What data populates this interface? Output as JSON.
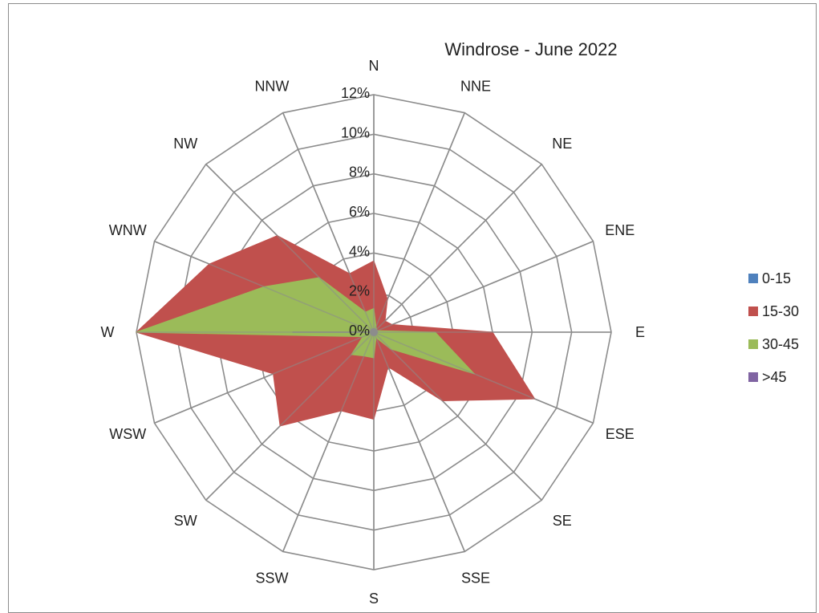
{
  "chart_data": {
    "type": "radar",
    "title": "Windrose - June 2022",
    "directions": [
      "N",
      "NNE",
      "NE",
      "ENE",
      "E",
      "ESE",
      "SE",
      "SSE",
      "S",
      "SSW",
      "SW",
      "WSW",
      "W",
      "WNW",
      "NW",
      "NNW"
    ],
    "r_ticks": [
      "0%",
      "2%",
      "4%",
      "6%",
      "8%",
      "10%",
      "12%"
    ],
    "r_max": 12,
    "series": [
      {
        "name": "0-15",
        "color": "#4F81BD",
        "values": [
          0,
          0,
          0,
          0,
          0,
          0,
          0,
          0,
          0,
          0,
          0,
          0,
          0,
          0,
          0,
          0
        ]
      },
      {
        "name": "15-30",
        "color": "#C0504D",
        "values": [
          3.6,
          1.8,
          0.8,
          1.0,
          6.0,
          8.8,
          4.9,
          1.9,
          4.4,
          4.3,
          6.7,
          5.5,
          12.0,
          9.0,
          6.9,
          3.2
        ]
      },
      {
        "name": "30-45",
        "color": "#9BBB59",
        "values": [
          1.2,
          0.3,
          0.2,
          0.2,
          3.1,
          5.5,
          1.2,
          0.3,
          1.3,
          1.3,
          1.6,
          0.6,
          12.0,
          6.0,
          3.9,
          1.1
        ]
      },
      {
        "name": ">45",
        "color": "#8064A2",
        "values": [
          0,
          0,
          0,
          0,
          0,
          0,
          0,
          0,
          0,
          0,
          0,
          0,
          4.1,
          0,
          0,
          0
        ]
      }
    ],
    "legend_position": "right",
    "grid": true
  }
}
